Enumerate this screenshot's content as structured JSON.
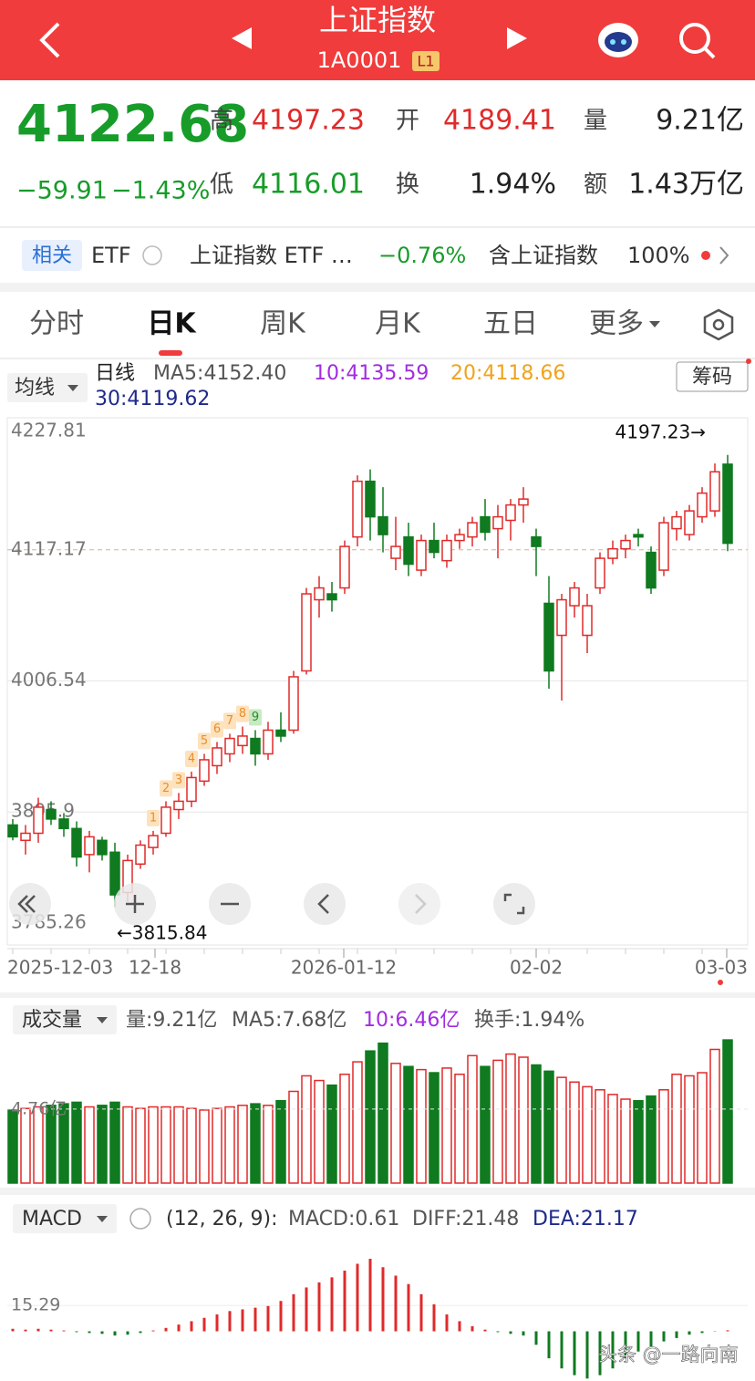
{
  "header": {
    "title": "上证指数",
    "code": "1A0001",
    "level": "L1"
  },
  "quote": {
    "price": "4122.68",
    "change": "−59.91",
    "change_pct": "−1.43%",
    "fields": [
      {
        "label": "高",
        "value": "4197.23"
      },
      {
        "label": "开",
        "value": "4189.41"
      },
      {
        "label": "量",
        "value": "9.21亿"
      },
      {
        "label": "低",
        "value": "4116.01"
      },
      {
        "label": "换",
        "value": "1.94%"
      },
      {
        "label": "额",
        "value": "1.43万亿"
      }
    ]
  },
  "related": {
    "tag": "相关",
    "etf": "ETF",
    "fund": "上证指数 ETF …",
    "fund_change": "−0.76%",
    "contains": "含上证指数",
    "contains_pct": "100%"
  },
  "tabs": [
    "分时",
    "日K",
    "周K",
    "月K",
    "五日",
    "更多"
  ],
  "kline": {
    "indicator": "均线",
    "line": "日线",
    "ma5": "MA5:4152.40",
    "ma10": "10:4135.59",
    "ma20": "20:4118.66",
    "ma30": "30:4119.62",
    "chips": "筹码",
    "ylim": [
      3785.26,
      4227.81
    ],
    "yticks": [
      4227.81,
      4117.17,
      4006.54,
      {
        "value": 3895.9,
        "label": "3895.9"
      },
      3785.26
    ],
    "high_label": "4197.23→",
    "low_label": "←3815.84",
    "td_labels": [
      "1",
      "2",
      "3",
      "4",
      "5",
      "6",
      "7",
      "8",
      "9"
    ],
    "xticks": [
      "2025-12-03",
      "12-18",
      "2026-01-12",
      "02-02",
      "03-03"
    ],
    "candles": [
      [
        3885,
        3890,
        3872,
        3875
      ],
      [
        3872,
        3885,
        3860,
        3878
      ],
      [
        3878,
        3908,
        3870,
        3900
      ],
      [
        3898,
        3905,
        3885,
        3890
      ],
      [
        3890,
        3895,
        3875,
        3882
      ],
      [
        3882,
        3888,
        3850,
        3858
      ],
      [
        3860,
        3880,
        3845,
        3875
      ],
      [
        3872,
        3875,
        3855,
        3860
      ],
      [
        3862,
        3870,
        3815.84,
        3826
      ],
      [
        3828,
        3860,
        3820,
        3855
      ],
      [
        3852,
        3872,
        3848,
        3868
      ],
      [
        3866,
        3880,
        3860,
        3876
      ],
      [
        3878,
        3905,
        3875,
        3900
      ],
      [
        3898,
        3912,
        3890,
        3905
      ],
      [
        3905,
        3930,
        3900,
        3925
      ],
      [
        3922,
        3945,
        3918,
        3940
      ],
      [
        3935,
        3955,
        3928,
        3950
      ],
      [
        3945,
        3962,
        3938,
        3958
      ],
      [
        3952,
        3968,
        3945,
        3960
      ],
      [
        3958,
        3965,
        3935,
        3945
      ],
      [
        3945,
        3972,
        3940,
        3965
      ],
      [
        3965,
        3980,
        3955,
        3960
      ],
      [
        3965,
        4015,
        3962,
        4010
      ],
      [
        4015,
        4085,
        4012,
        4080
      ],
      [
        4075,
        4095,
        4060,
        4085
      ],
      [
        4080,
        4090,
        4065,
        4075
      ],
      [
        4085,
        4125,
        4080,
        4120
      ],
      [
        4128,
        4180,
        4120,
        4175
      ],
      [
        4175,
        4185,
        4125,
        4145
      ],
      [
        4145,
        4170,
        4115,
        4130
      ],
      [
        4110,
        4145,
        4100,
        4120
      ],
      [
        4128,
        4140,
        4095,
        4105
      ],
      [
        4100,
        4130,
        4095,
        4125
      ],
      [
        4125,
        4140,
        4110,
        4115
      ],
      [
        4108,
        4130,
        4102,
        4125
      ],
      [
        4125,
        4135,
        4118,
        4130
      ],
      [
        4128,
        4145,
        4120,
        4140
      ],
      [
        4145,
        4160,
        4125,
        4132
      ],
      [
        4135,
        4155,
        4110,
        4145
      ],
      [
        4142,
        4160,
        4125,
        4155
      ],
      [
        4155,
        4170,
        4140,
        4160
      ],
      [
        4128,
        4135,
        4095,
        4120
      ],
      [
        4072,
        4095,
        4000,
        4015
      ],
      [
        4045,
        4080,
        3990,
        4075
      ],
      [
        4070,
        4090,
        4060,
        4085
      ],
      [
        4045,
        4080,
        4030,
        4070
      ],
      [
        4085,
        4115,
        4080,
        4110
      ],
      [
        4110,
        4125,
        4105,
        4118
      ],
      [
        4118,
        4130,
        4110,
        4125
      ],
      [
        4130,
        4135,
        4120,
        4128
      ],
      [
        4115,
        4120,
        4080,
        4085
      ],
      [
        4100,
        4145,
        4095,
        4140
      ],
      [
        4135,
        4150,
        4125,
        4145
      ],
      [
        4130,
        4155,
        4125,
        4150
      ],
      [
        4145,
        4170,
        4140,
        4165
      ],
      [
        4150,
        4190,
        4145,
        4183
      ],
      [
        4189.41,
        4197.23,
        4116.01,
        4122.68
      ]
    ]
  },
  "volume": {
    "indicator": "成交量",
    "vol": "量:9.21亿",
    "ma5": "MA5:7.68亿",
    "ma10": "10:6.46亿",
    "turnover": "换手:1.94%",
    "ylim": [
      0,
      9.45
    ],
    "yticks": [
      {
        "value": 4.76,
        "label": "4.76亿"
      }
    ],
    "values": [
      4.7,
      4.8,
      4.9,
      5.0,
      5.1,
      5.2,
      4.9,
      5.0,
      5.2,
      4.9,
      4.8,
      4.9,
      4.9,
      4.9,
      4.8,
      4.7,
      4.8,
      4.9,
      5.0,
      5.1,
      5.0,
      5.3,
      5.9,
      6.9,
      6.6,
      6.3,
      7.0,
      7.8,
      8.5,
      9.0,
      7.7,
      7.5,
      7.3,
      7.1,
      7.4,
      7.0,
      8.2,
      7.5,
      7.9,
      8.3,
      8.1,
      7.6,
      7.2,
      6.8,
      6.5,
      6.2,
      6.0,
      5.7,
      5.4,
      5.3,
      5.6,
      6.0,
      7.0,
      6.9,
      7.1,
      8.6,
      9.21
    ]
  },
  "macd": {
    "indicator": "MACD",
    "params": "(12, 26, 9):",
    "macd": "MACD:0.61",
    "diff": "DIFF:21.48",
    "dea": "DEA:21.17",
    "ylim": [
      -30,
      43
    ],
    "yticks": [
      15.29
    ],
    "hist": [
      1.5,
      1,
      1.5,
      1,
      0.5,
      -0.5,
      -1,
      -1.5,
      -2.5,
      -2,
      -1,
      0.5,
      2,
      4,
      6,
      8,
      10,
      12,
      13,
      14,
      15,
      18,
      22,
      26,
      29,
      32,
      36,
      40,
      43,
      38,
      33,
      28,
      22,
      16,
      10,
      6,
      3,
      1,
      -0.5,
      -1.5,
      -2.5,
      -8,
      -16,
      -22,
      -26,
      -28,
      -26,
      -22,
      -16,
      -12,
      -9,
      -6,
      -4,
      -2,
      -1,
      0.2,
      0.61
    ]
  },
  "watermark": "头条 @一路向南"
}
